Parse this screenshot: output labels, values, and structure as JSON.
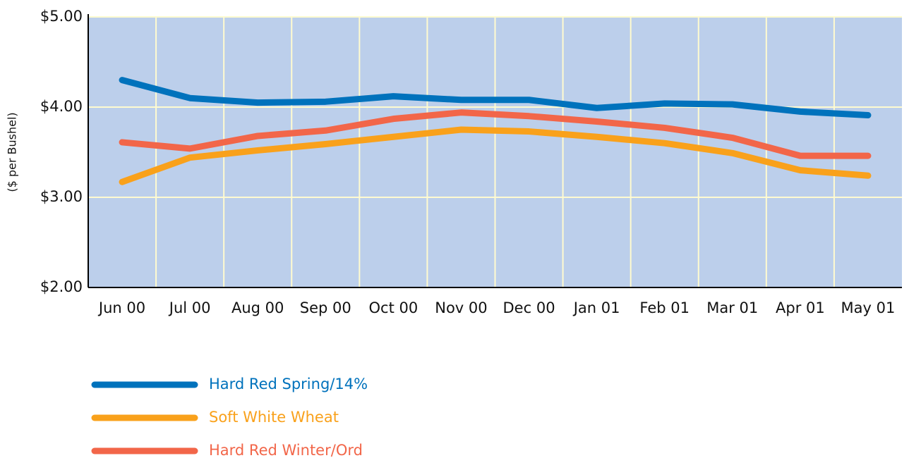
{
  "chart_data": {
    "type": "line",
    "y_label": "($ per Bushel)",
    "categories": [
      "Jun 00",
      "Jul 00",
      "Aug 00",
      "Sep 00",
      "Oct 00",
      "Nov 00",
      "Dec 00",
      "Jan 01",
      "Feb 01",
      "Mar 01",
      "Apr 01",
      "May 01"
    ],
    "series": [
      {
        "name": "Hard Red Spring/14%",
        "color": "#0072bc",
        "values": [
          4.3,
          4.1,
          4.05,
          4.06,
          4.12,
          4.08,
          4.08,
          3.99,
          4.04,
          4.03,
          3.95,
          3.91
        ]
      },
      {
        "name": "Soft White Wheat",
        "color": "#f9a11b",
        "values": [
          3.17,
          3.44,
          3.52,
          3.59,
          3.67,
          3.75,
          3.73,
          3.67,
          3.6,
          3.49,
          3.3,
          3.24
        ]
      },
      {
        "name": "Hard Red Winter/Ord",
        "color": "#f26649",
        "values": [
          3.61,
          3.54,
          3.68,
          3.74,
          3.87,
          3.94,
          3.9,
          3.84,
          3.77,
          3.66,
          3.46,
          3.46
        ]
      }
    ],
    "ylim": [
      2,
      5
    ],
    "yticks": [
      {
        "value": 2,
        "label": "$2.00"
      },
      {
        "value": 3,
        "label": "$3.00"
      },
      {
        "value": 4,
        "label": "$4.00"
      },
      {
        "value": 5,
        "label": "$5.00"
      }
    ],
    "grid": true,
    "plot_background": "#bccfeb",
    "legend": "bottom-left"
  }
}
